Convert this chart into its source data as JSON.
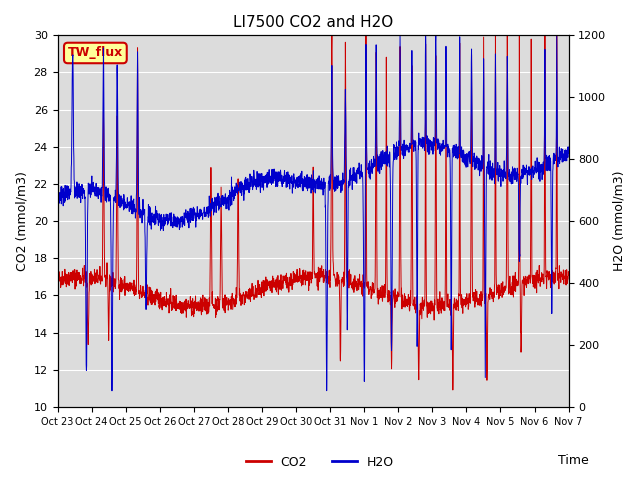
{
  "title": "LI7500 CO2 and H2O",
  "xlabel": "Time",
  "ylabel_left": "CO2 (mmol/m3)",
  "ylabel_right": "H2O (mmol/m3)",
  "watermark_text": "TW_flux",
  "ylim_left": [
    10,
    30
  ],
  "ylim_right": [
    0,
    1200
  ],
  "yticks_left": [
    10,
    12,
    14,
    16,
    18,
    20,
    22,
    24,
    26,
    28,
    30
  ],
  "yticks_right": [
    0,
    200,
    400,
    600,
    800,
    1000,
    1200
  ],
  "xtick_labels": [
    "Oct 23",
    "Oct 24",
    "Oct 25",
    "Oct 26",
    "Oct 27",
    "Oct 28",
    "Oct 29",
    "Oct 30",
    "Oct 31",
    "Nov 1",
    "Nov 2",
    "Nov 3",
    "Nov 4",
    "Nov 5",
    "Nov 6",
    "Nov 7"
  ],
  "co2_color": "#cc0000",
  "h2o_color": "#0000cc",
  "background_color": "#dcdcdc",
  "watermark_bg": "#ffff99",
  "watermark_fg": "#cc0000",
  "legend_co2": "CO2",
  "legend_h2o": "H2O",
  "title_fontsize": 11,
  "axis_label_fontsize": 9,
  "tick_fontsize": 8,
  "legend_fontsize": 9,
  "n_points": 2160,
  "seed": 42
}
